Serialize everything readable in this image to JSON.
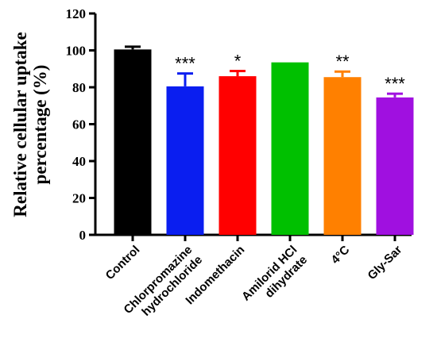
{
  "chart_data": {
    "type": "bar",
    "ylabel": [
      "Relative cellular uptake",
      "percentage (%)"
    ],
    "ylim": [
      0,
      120
    ],
    "yticks": [
      0,
      20,
      40,
      60,
      80,
      100,
      120
    ],
    "categories": [
      [
        "Control"
      ],
      [
        "Chlorpromazine",
        "hydrochloride"
      ],
      [
        "Indomethacin"
      ],
      [
        "Amilorid HCl",
        "dihydrate"
      ],
      [
        "4°C"
      ],
      [
        "Gly-Sar"
      ]
    ],
    "values": [
      100.5,
      80.5,
      86.0,
      93.5,
      85.5,
      74.5
    ],
    "errors": [
      1.5,
      7.0,
      2.8,
      0.0,
      3.0,
      2.0
    ],
    "significance": [
      "",
      "***",
      "*",
      "",
      "**",
      "***"
    ],
    "colors": [
      "#000000",
      "#0a1ef0",
      "#ff0000",
      "#00c000",
      "#ff8000",
      "#a010e0"
    ]
  }
}
